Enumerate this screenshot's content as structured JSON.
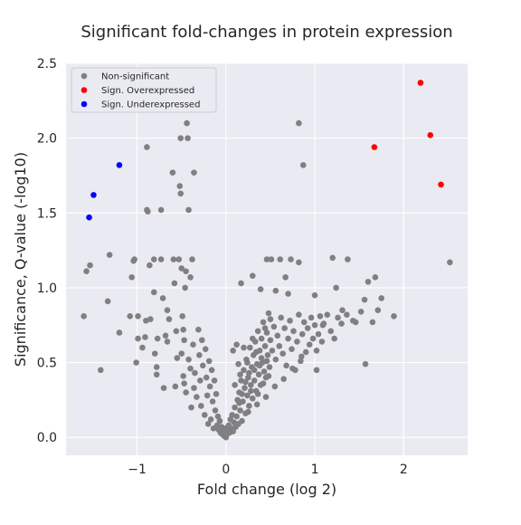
{
  "chart_data": {
    "type": "scatter",
    "title": "Significant fold-changes in protein expression",
    "xlabel": "Fold change (log 2)",
    "ylabel": "Significance, Q-value (-log10)",
    "xlim": [
      -1.8,
      2.72
    ],
    "ylim": [
      -0.12,
      2.5
    ],
    "xticks": [
      -1,
      0,
      1,
      2
    ],
    "xtick_labels": [
      "−1",
      "0",
      "1",
      "2"
    ],
    "yticks": [
      0.0,
      0.5,
      1.0,
      1.5,
      2.0,
      2.5
    ],
    "ytick_labels": [
      "0.0",
      "0.5",
      "1.0",
      "1.5",
      "2.0",
      "2.5"
    ],
    "grid": true,
    "legend_position": "top-left",
    "background": "#eaeaf2",
    "series": [
      {
        "name": "Non-significant",
        "color": "#808080",
        "points": [
          [
            -1.6,
            0.81
          ],
          [
            -1.57,
            1.11
          ],
          [
            -1.53,
            1.15
          ],
          [
            -1.41,
            0.45
          ],
          [
            -1.33,
            0.91
          ],
          [
            -1.31,
            1.22
          ],
          [
            -1.2,
            0.7
          ],
          [
            -1.08,
            0.81
          ],
          [
            -1.06,
            1.07
          ],
          [
            -1.04,
            1.18
          ],
          [
            -1.03,
            1.19
          ],
          [
            -1.01,
            0.5
          ],
          [
            -0.99,
            0.81
          ],
          [
            -0.99,
            0.66
          ],
          [
            -0.94,
            0.6
          ],
          [
            -0.91,
            0.67
          ],
          [
            -0.9,
            0.78
          ],
          [
            -0.89,
            1.94
          ],
          [
            -0.89,
            1.52
          ],
          [
            -0.88,
            1.51
          ],
          [
            -0.86,
            1.15
          ],
          [
            -0.85,
            0.79
          ],
          [
            -0.81,
            1.19
          ],
          [
            -0.81,
            0.97
          ],
          [
            -0.8,
            0.56
          ],
          [
            -0.78,
            0.47
          ],
          [
            -0.78,
            0.42
          ],
          [
            -0.77,
            0.66
          ],
          [
            -0.73,
            1.52
          ],
          [
            -0.73,
            1.19
          ],
          [
            -0.71,
            0.93
          ],
          [
            -0.7,
            0.33
          ],
          [
            -0.68,
            0.68
          ],
          [
            -0.66,
            0.85
          ],
          [
            -0.66,
            0.64
          ],
          [
            -0.64,
            0.79
          ],
          [
            -0.6,
            1.77
          ],
          [
            -0.59,
            1.19
          ],
          [
            -0.58,
            1.03
          ],
          [
            -0.57,
            0.34
          ],
          [
            -0.56,
            0.71
          ],
          [
            -0.55,
            0.53
          ],
          [
            -0.53,
            1.19
          ],
          [
            -0.52,
            1.68
          ],
          [
            -0.51,
            1.63
          ],
          [
            -0.51,
            2.0
          ],
          [
            -0.5,
            1.13
          ],
          [
            -0.49,
            0.81
          ],
          [
            -0.48,
            0.72
          ],
          [
            -0.47,
            0.65
          ],
          [
            -0.46,
            1.0
          ],
          [
            -0.45,
            1.11
          ],
          [
            -0.44,
            2.1
          ],
          [
            -0.43,
            2.0
          ],
          [
            -0.42,
            1.52
          ],
          [
            -0.4,
            1.07
          ],
          [
            -0.38,
            1.19
          ],
          [
            -0.36,
            1.77
          ],
          [
            -0.5,
            0.56
          ],
          [
            -0.48,
            0.41
          ],
          [
            -0.47,
            0.36
          ],
          [
            -0.45,
            0.3
          ],
          [
            -0.42,
            0.52
          ],
          [
            -0.4,
            0.46
          ],
          [
            -0.39,
            0.2
          ],
          [
            -0.37,
            0.62
          ],
          [
            -0.36,
            0.33
          ],
          [
            -0.35,
            0.43
          ],
          [
            -0.33,
            0.27
          ],
          [
            -0.31,
            0.72
          ],
          [
            -0.3,
            0.55
          ],
          [
            -0.29,
            0.38
          ],
          [
            -0.28,
            0.21
          ],
          [
            -0.27,
            0.65
          ],
          [
            -0.26,
            0.48
          ],
          [
            -0.24,
            0.15
          ],
          [
            -0.23,
            0.59
          ],
          [
            -0.22,
            0.4
          ],
          [
            -0.21,
            0.28
          ],
          [
            -0.2,
            0.09
          ],
          [
            -0.19,
            0.51
          ],
          [
            -0.18,
            0.34
          ],
          [
            -0.17,
            0.12
          ],
          [
            -0.16,
            0.45
          ],
          [
            -0.15,
            0.24
          ],
          [
            -0.14,
            0.06
          ],
          [
            -0.13,
            0.38
          ],
          [
            -0.12,
            0.18
          ],
          [
            -0.11,
            0.29
          ],
          [
            -0.1,
            0.08
          ],
          [
            -0.09,
            0.14
          ],
          [
            -0.08,
            0.05
          ],
          [
            -0.07,
            0.11
          ],
          [
            -0.06,
            0.03
          ],
          [
            -0.05,
            0.07
          ],
          [
            -0.04,
            0.02
          ],
          [
            -0.03,
            0.04
          ],
          [
            -0.02,
            0.01
          ],
          [
            -0.01,
            0.06
          ],
          [
            0.0,
            0.0
          ],
          [
            0.01,
            0.02
          ],
          [
            0.02,
            0.05
          ],
          [
            0.03,
            0.08
          ],
          [
            0.04,
            0.03
          ],
          [
            0.05,
            0.12
          ],
          [
            0.06,
            0.06
          ],
          [
            0.07,
            0.15
          ],
          [
            0.08,
            0.04
          ],
          [
            0.09,
            0.1
          ],
          [
            0.1,
            0.2
          ],
          [
            0.11,
            0.07
          ],
          [
            0.12,
            0.14
          ],
          [
            0.13,
            0.25
          ],
          [
            0.14,
            0.09
          ],
          [
            0.15,
            0.3
          ],
          [
            0.16,
            0.18
          ],
          [
            0.17,
            0.38
          ],
          [
            0.18,
            0.11
          ],
          [
            0.19,
            0.24
          ],
          [
            0.2,
            0.45
          ],
          [
            0.21,
            0.33
          ],
          [
            0.22,
            0.16
          ],
          [
            0.23,
            0.52
          ],
          [
            0.24,
            0.28
          ],
          [
            0.25,
            0.4
          ],
          [
            0.26,
            0.21
          ],
          [
            0.27,
            0.6
          ],
          [
            0.28,
            0.35
          ],
          [
            0.29,
            0.47
          ],
          [
            0.3,
            0.26
          ],
          [
            0.31,
            0.55
          ],
          [
            0.32,
            0.38
          ],
          [
            0.33,
            0.64
          ],
          [
            0.34,
            0.31
          ],
          [
            0.35,
            0.49
          ],
          [
            0.36,
            0.71
          ],
          [
            0.37,
            0.42
          ],
          [
            0.38,
            0.58
          ],
          [
            0.39,
            0.35
          ],
          [
            0.4,
            0.66
          ],
          [
            0.41,
            0.5
          ],
          [
            0.42,
            0.77
          ],
          [
            0.43,
            0.44
          ],
          [
            0.44,
            0.61
          ],
          [
            0.45,
            0.4
          ],
          [
            0.46,
            0.7
          ],
          [
            0.47,
            0.55
          ],
          [
            0.48,
            0.83
          ],
          [
            0.49,
            0.47
          ],
          [
            0.5,
            0.65
          ],
          [
            0.52,
            0.58
          ],
          [
            0.54,
            0.74
          ],
          [
            0.56,
            0.52
          ],
          [
            0.58,
            0.68
          ],
          [
            0.6,
            0.61
          ],
          [
            0.62,
            0.8
          ],
          [
            0.64,
            0.56
          ],
          [
            0.66,
            0.73
          ],
          [
            0.68,
            0.48
          ],
          [
            0.7,
            0.66
          ],
          [
            0.72,
            0.78
          ],
          [
            0.74,
            0.59
          ],
          [
            0.76,
            0.71
          ],
          [
            0.78,
            0.45
          ],
          [
            0.8,
            0.64
          ],
          [
            0.82,
            0.82
          ],
          [
            0.84,
            0.51
          ],
          [
            0.86,
            0.69
          ],
          [
            0.88,
            0.77
          ],
          [
            0.9,
            0.57
          ],
          [
            0.92,
            0.73
          ],
          [
            0.94,
            0.62
          ],
          [
            0.96,
            0.8
          ],
          [
            0.98,
            0.66
          ],
          [
            1.0,
            0.75
          ],
          [
            1.02,
            0.58
          ],
          [
            1.04,
            0.69
          ],
          [
            1.06,
            0.81
          ],
          [
            1.08,
            0.64
          ],
          [
            1.1,
            0.76
          ],
          [
            1.14,
            0.82
          ],
          [
            1.18,
            0.71
          ],
          [
            1.22,
            0.66
          ],
          [
            1.26,
            0.8
          ],
          [
            1.3,
            0.76
          ],
          [
            1.36,
            0.82
          ],
          [
            1.43,
            0.78
          ],
          [
            0.08,
            0.58
          ],
          [
            0.1,
            0.35
          ],
          [
            0.12,
            0.62
          ],
          [
            0.14,
            0.49
          ],
          [
            0.16,
            0.42
          ],
          [
            0.18,
            0.29
          ],
          [
            0.2,
            0.6
          ],
          [
            0.22,
            0.37
          ],
          [
            0.24,
            0.5
          ],
          [
            0.26,
            0.43
          ],
          [
            0.28,
            0.31
          ],
          [
            0.3,
            0.66
          ],
          [
            0.32,
            0.45
          ],
          [
            0.34,
            0.57
          ],
          [
            0.36,
            0.29
          ],
          [
            0.38,
            0.48
          ],
          [
            0.4,
            0.53
          ],
          [
            0.42,
            0.36
          ],
          [
            0.44,
            0.73
          ],
          [
            0.46,
            0.51
          ],
          [
            0.48,
            0.41
          ],
          [
            0.5,
            0.79
          ],
          [
            0.15,
            0.23
          ],
          [
            0.25,
            0.17
          ],
          [
            0.35,
            0.22
          ],
          [
            0.45,
            0.27
          ],
          [
            0.55,
            0.34
          ],
          [
            0.65,
            0.39
          ],
          [
            0.75,
            0.46
          ],
          [
            0.85,
            0.54
          ],
          [
            0.17,
            1.03
          ],
          [
            0.3,
            1.08
          ],
          [
            0.39,
            0.99
          ],
          [
            0.46,
            1.19
          ],
          [
            0.51,
            1.19
          ],
          [
            0.56,
            0.98
          ],
          [
            0.61,
            1.19
          ],
          [
            0.67,
            1.07
          ],
          [
            0.7,
            0.96
          ],
          [
            0.73,
            1.19
          ],
          [
            0.82,
            2.1
          ],
          [
            0.82,
            1.17
          ],
          [
            0.87,
            1.82
          ],
          [
            1.0,
            0.95
          ],
          [
            1.02,
            0.45
          ],
          [
            1.09,
            0.75
          ],
          [
            1.2,
            1.2
          ],
          [
            1.24,
            1.0
          ],
          [
            1.31,
            0.85
          ],
          [
            1.37,
            1.19
          ],
          [
            1.46,
            0.77
          ],
          [
            1.52,
            0.84
          ],
          [
            1.56,
            0.92
          ],
          [
            1.57,
            0.49
          ],
          [
            1.6,
            1.04
          ],
          [
            1.65,
            0.77
          ],
          [
            1.68,
            1.07
          ],
          [
            1.71,
            0.85
          ],
          [
            1.75,
            0.93
          ],
          [
            1.89,
            0.81
          ],
          [
            2.52,
            1.17
          ]
        ]
      },
      {
        "name": "Sign. Overexpressed",
        "color": "#ff0000",
        "points": [
          [
            1.67,
            1.94
          ],
          [
            2.19,
            2.37
          ],
          [
            2.3,
            2.02
          ],
          [
            2.42,
            1.69
          ]
        ]
      },
      {
        "name": "Sign. Underexpressed",
        "color": "#0000ff",
        "points": [
          [
            -1.2,
            1.82
          ],
          [
            -1.49,
            1.62
          ],
          [
            -1.54,
            1.47
          ]
        ]
      }
    ]
  }
}
